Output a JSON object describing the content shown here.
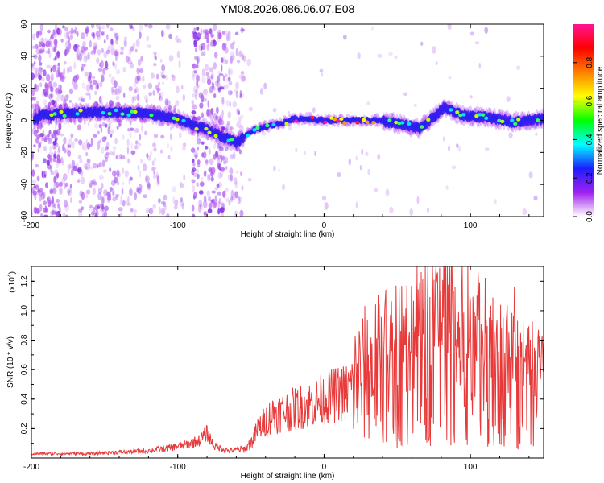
{
  "title": "YM08.2026.086.06.07.E08",
  "spectrogram": {
    "type": "heatmap",
    "xlabel": "Height of straight line (km)",
    "ylabel": "Frequency (Hz)",
    "xlim": [
      -200,
      150
    ],
    "ylim": [
      -60,
      60
    ],
    "xticks": [
      "-200",
      "-100",
      "0",
      "100"
    ],
    "yticks": [
      "60",
      "40",
      "20",
      "0",
      "-20",
      "-40",
      "-60"
    ],
    "ridge": [
      {
        "x": -195,
        "y": 3
      },
      {
        "x": -180,
        "y": 4
      },
      {
        "x": -160,
        "y": 5
      },
      {
        "x": -140,
        "y": 5
      },
      {
        "x": -120,
        "y": 4
      },
      {
        "x": -100,
        "y": 1
      },
      {
        "x": -90,
        "y": -3
      },
      {
        "x": -80,
        "y": -6
      },
      {
        "x": -70,
        "y": -10
      },
      {
        "x": -60,
        "y": -14
      },
      {
        "x": -50,
        "y": -7
      },
      {
        "x": -40,
        "y": -4
      },
      {
        "x": -30,
        "y": -2
      },
      {
        "x": -20,
        "y": 1
      },
      {
        "x": -10,
        "y": 1
      },
      {
        "x": 0,
        "y": 0
      },
      {
        "x": 20,
        "y": 0
      },
      {
        "x": 35,
        "y": 0
      },
      {
        "x": 50,
        "y": -2
      },
      {
        "x": 65,
        "y": -5
      },
      {
        "x": 75,
        "y": 2
      },
      {
        "x": 82,
        "y": 8
      },
      {
        "x": 95,
        "y": 3
      },
      {
        "x": 110,
        "y": 2
      },
      {
        "x": 130,
        "y": -1
      },
      {
        "x": 150,
        "y": 1
      }
    ]
  },
  "colorbar": {
    "label": "Normalized spectral amplitude",
    "ticks": [
      "0.0",
      "0.2",
      "0.4",
      "0.6",
      "0.8"
    ],
    "colors": [
      "#ffffff",
      "#a020f0",
      "#1e1eff",
      "#00ffff",
      "#00ff00",
      "#ffff00",
      "#ff8000",
      "#ff0000",
      "#ff1493"
    ]
  },
  "chart_data": {
    "type": "line",
    "title": "YM08.2026.086.06.07.E08",
    "xlabel": "Height of straight line (km)",
    "ylabel": "SNR (10 * v/v)",
    "multiplier": "(x10",
    "multiplier_exp": "4",
    "multiplier_close": ")",
    "xlim": [
      -200,
      150
    ],
    "ylim": [
      0,
      1.3
    ],
    "xticks": [
      "-200",
      "-100",
      "0",
      "100"
    ],
    "yticks": [
      "0.2",
      "0.4",
      "0.6",
      "0.8",
      "1.0",
      "1.2"
    ],
    "color": "#e83a3a",
    "series": [
      {
        "name": "SNR",
        "x": [
          -200,
          -180,
          -160,
          -140,
          -120,
          -105,
          -95,
          -85,
          -80,
          -75,
          -65,
          -55,
          -50,
          -45,
          -35,
          -25,
          -15,
          -5,
          5,
          15,
          25,
          35,
          45,
          55,
          65,
          75,
          85,
          95,
          105,
          115,
          125,
          135,
          145,
          150
        ],
        "y": [
          0.03,
          0.03,
          0.03,
          0.04,
          0.05,
          0.07,
          0.09,
          0.12,
          0.17,
          0.08,
          0.05,
          0.06,
          0.1,
          0.2,
          0.3,
          0.32,
          0.35,
          0.38,
          0.42,
          0.45,
          0.55,
          0.6,
          0.65,
          0.7,
          0.75,
          0.8,
          0.85,
          0.75,
          0.7,
          0.65,
          0.6,
          0.55,
          0.5,
          0.45
        ],
        "peaks": [
          {
            "x": 45,
            "y": 0.8
          },
          {
            "x": 55,
            "y": 0.9
          },
          {
            "x": 62,
            "y": 1.05
          },
          {
            "x": 68,
            "y": 1.12
          },
          {
            "x": 78,
            "y": 1.0
          },
          {
            "x": 85,
            "y": 1.3
          },
          {
            "x": 90,
            "y": 0.95
          },
          {
            "x": 100,
            "y": 1.12
          },
          {
            "x": 110,
            "y": 0.9
          },
          {
            "x": 118,
            "y": 1.1
          },
          {
            "x": 125,
            "y": 1.22
          },
          {
            "x": 130,
            "y": 1.22
          },
          {
            "x": 140,
            "y": 0.85
          },
          {
            "x": 147,
            "y": 0.8
          }
        ]
      }
    ]
  }
}
